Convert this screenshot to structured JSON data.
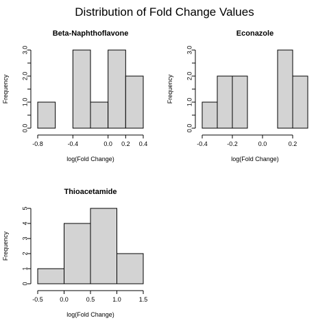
{
  "title": "Distribution of Fold Change Values",
  "chart_data": [
    {
      "type": "bar",
      "title": "Beta-Naphthoflavone",
      "xlabel": "log(Fold Change)",
      "ylabel": "Frequency",
      "bins": [
        [
          -0.8,
          -0.6
        ],
        [
          -0.6,
          -0.4
        ],
        [
          -0.4,
          -0.2
        ],
        [
          -0.2,
          0.0
        ],
        [
          0.0,
          0.2
        ],
        [
          0.2,
          0.4
        ]
      ],
      "values": [
        1,
        0,
        3,
        1,
        3,
        2
      ],
      "xlim": [
        -0.8,
        0.4
      ],
      "ylim": [
        0,
        3
      ],
      "xticks": [
        -0.8,
        -0.4,
        0.0,
        0.2,
        0.4
      ],
      "xtick_labels": [
        "-0.8",
        "-0.4",
        "0.0",
        "0.2",
        "0.4"
      ],
      "yticks": [
        0.0,
        0.5,
        1.0,
        1.5,
        2.0,
        2.5,
        3.0
      ],
      "ytick_labels": [
        "0.0",
        "",
        "1.0",
        "",
        "2.0",
        "",
        "3.0"
      ]
    },
    {
      "type": "bar",
      "title": "Econazole",
      "xlabel": "log(Fold Change)",
      "ylabel": "Frequency",
      "bins": [
        [
          -0.4,
          -0.3
        ],
        [
          -0.3,
          -0.2
        ],
        [
          -0.2,
          -0.1
        ],
        [
          -0.1,
          0.0
        ],
        [
          0.0,
          0.1
        ],
        [
          0.1,
          0.2
        ],
        [
          0.2,
          0.3
        ]
      ],
      "values": [
        1,
        2,
        2,
        0,
        0,
        3,
        2
      ],
      "xlim": [
        -0.4,
        0.3
      ],
      "ylim": [
        0,
        3
      ],
      "xticks": [
        -0.4,
        -0.2,
        0.0,
        0.2
      ],
      "xtick_labels": [
        "-0.4",
        "-0.2",
        "0.0",
        "0.2"
      ],
      "yticks": [
        0.0,
        0.5,
        1.0,
        1.5,
        2.0,
        2.5,
        3.0
      ],
      "ytick_labels": [
        "0.0",
        "",
        "1.0",
        "",
        "2.0",
        "",
        "3.0"
      ]
    },
    {
      "type": "bar",
      "title": "Thioacetamide",
      "xlabel": "log(Fold Change)",
      "ylabel": "Frequency",
      "bins": [
        [
          -0.5,
          0.0
        ],
        [
          0.0,
          0.5
        ],
        [
          0.5,
          1.0
        ],
        [
          1.0,
          1.5
        ]
      ],
      "values": [
        1,
        4,
        5,
        2
      ],
      "xlim": [
        -0.5,
        1.5
      ],
      "ylim": [
        0,
        5
      ],
      "xticks": [
        -0.5,
        0.0,
        0.5,
        1.0,
        1.5
      ],
      "xtick_labels": [
        "-0.5",
        "0.0",
        "0.5",
        "1.0",
        "1.5"
      ],
      "yticks": [
        0,
        1,
        2,
        3,
        4,
        5
      ],
      "ytick_labels": [
        "0",
        "1",
        "2",
        "3",
        "4",
        "5"
      ]
    }
  ]
}
